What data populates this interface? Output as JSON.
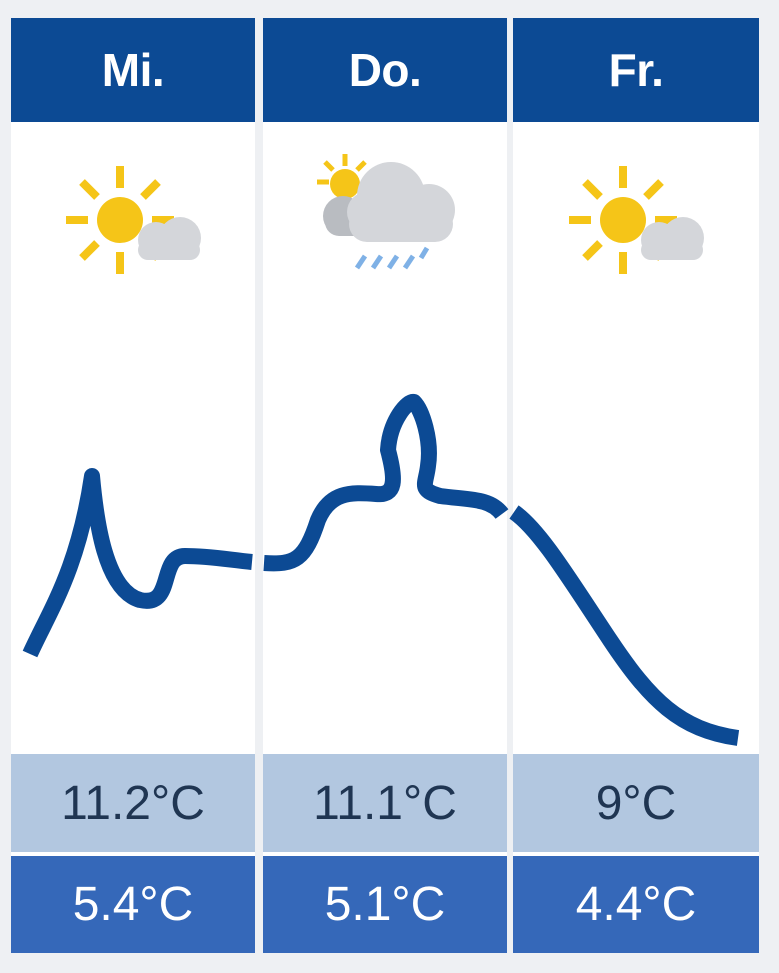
{
  "days": [
    {
      "label": "Mi.",
      "icon": "sun-with-cloud-icon",
      "max": "11.2°C",
      "min": "5.4°C"
    },
    {
      "label": "Do.",
      "icon": "cloud-rain-sun-icon",
      "max": "11.1°C",
      "min": "5.1°C"
    },
    {
      "label": "Fr.",
      "icon": "sun-with-cloud-icon",
      "max": "9°C",
      "min": "4.4°C"
    }
  ],
  "colors": {
    "header_bg": "#0c4a94",
    "max_bg": "#b2c7e0",
    "min_bg": "#3568b9",
    "curve": "#0c4a94",
    "sun": "#f5c518",
    "cloud": "#d4d6da"
  }
}
